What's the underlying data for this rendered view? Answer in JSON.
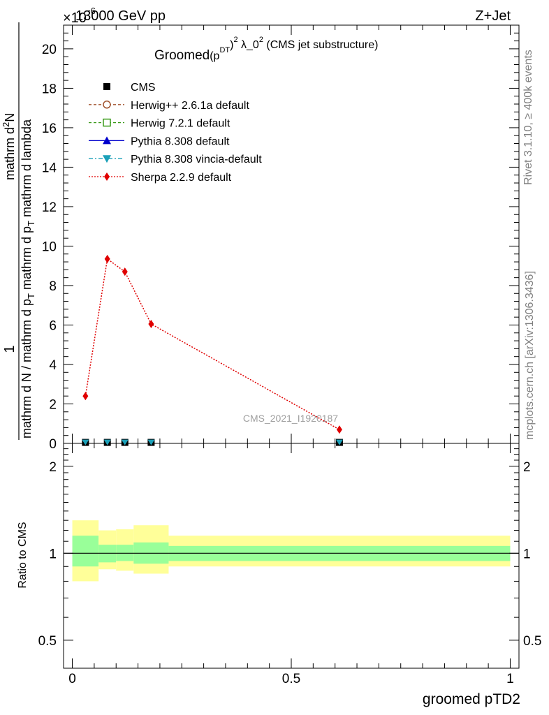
{
  "header": {
    "energy_label": "13000 GeV pp",
    "process_label": "Z+Jet",
    "exponent_label": "×10",
    "exponent_power": "−6"
  },
  "side_labels": {
    "rivet": "Rivet 3.1.10, ≥ 400k events",
    "mcplots": "mcplots.cern.ch [arXiv:1306.3436]"
  },
  "watermark": "CMS_2021_I1920187",
  "title": {
    "prefix": "Groomed",
    "p": "(p",
    "sup_D": "D",
    "sub_T": "T",
    "sup_2": "2",
    "rest": " λ_0",
    "sup_2b": "2",
    "suffix": " (CMS jet substructure)"
  },
  "y_title": {
    "line1": "1",
    "line2_a": "mathrm d N / mathrm d p",
    "line2_sub": "T",
    "line2_b": " mathrm d p",
    "line2_sub2": "T",
    "line2_c": " mathrm d lambda",
    "num": "mathrm d",
    "num_sup": "2",
    "num_b": "N"
  },
  "ratio_ylabel": "Ratio to CMS",
  "xlabel": "groomed pTD2",
  "legend": [
    {
      "label": "CMS",
      "color": "#000000",
      "marker": "square",
      "line": "none"
    },
    {
      "label": "Herwig++ 2.6.1a default",
      "color": "#a0522d",
      "marker": "circle-open",
      "line": "dashed"
    },
    {
      "label": "Herwig 7.2.1 default",
      "color": "#3a9a1a",
      "marker": "square-open",
      "line": "dashed"
    },
    {
      "label": "Pythia 8.308 default",
      "color": "#0000cc",
      "marker": "triangle",
      "line": "solid"
    },
    {
      "label": "Pythia 8.308 vincia-default",
      "color": "#1ba0b8",
      "marker": "triangle-down",
      "line": "dashdot"
    },
    {
      "label": "Sherpa 2.2.9 default",
      "color": "#e00000",
      "marker": "diamond",
      "line": "dotted"
    }
  ],
  "chart_data": {
    "type": "line",
    "title": "Groomed (p_T^D)^2 λ_0^2 (CMS jet substructure)",
    "xlabel": "groomed pTD2",
    "ylabel": "1 / mathrm d N / mathrm d p_T mathrm d p_T mathrm d lambda · mathrm d^2N",
    "xlim": [
      -0.02,
      1.02
    ],
    "ylim": [
      0,
      21.2
    ],
    "y_scale_exponent": -6,
    "x_ticks": [
      0,
      0.5,
      1
    ],
    "x_tick_labels": [
      "0",
      "0.5",
      "1"
    ],
    "y_ticks": [
      0,
      2,
      4,
      6,
      8,
      10,
      12,
      14,
      16,
      18,
      20
    ],
    "y_tick_labels": [
      "0",
      "2",
      "4",
      "6",
      "8",
      "10",
      "12",
      "14",
      "16",
      "18",
      "20"
    ],
    "bin_edges": [
      0,
      0.06,
      0.1,
      0.14,
      0.22,
      1.0
    ],
    "series": [
      {
        "name": "CMS",
        "x": [
          0.03,
          0.08,
          0.12,
          0.18,
          0.61
        ],
        "values": [
          0.05,
          0.05,
          0.05,
          0.05,
          0.05
        ]
      },
      {
        "name": "Herwig++ 2.6.1a default",
        "x": [
          0.03,
          0.08,
          0.12,
          0.18,
          0.61
        ],
        "values": [
          0.05,
          0.05,
          0.05,
          0.05,
          0.05
        ]
      },
      {
        "name": "Herwig 7.2.1 default",
        "x": [
          0.03,
          0.08,
          0.12,
          0.18,
          0.61
        ],
        "values": [
          0.05,
          0.05,
          0.05,
          0.05,
          0.05
        ]
      },
      {
        "name": "Pythia 8.308 default",
        "x": [
          0.03,
          0.08,
          0.12,
          0.18,
          0.61
        ],
        "values": [
          0.05,
          0.05,
          0.05,
          0.05,
          0.05
        ]
      },
      {
        "name": "Pythia 8.308 vincia-default",
        "x": [
          0.03,
          0.08,
          0.12,
          0.18,
          0.61
        ],
        "values": [
          0.05,
          0.05,
          0.05,
          0.05,
          0.05
        ]
      },
      {
        "name": "Sherpa 2.2.9 default",
        "x": [
          0.03,
          0.08,
          0.12,
          0.18,
          0.61
        ],
        "values": [
          2.4,
          9.35,
          8.7,
          6.05,
          0.7
        ]
      }
    ],
    "ratio": {
      "ylabel": "Ratio to CMS",
      "ylim": [
        0.4,
        2.4
      ],
      "y_ticks": [
        0.5,
        1,
        2
      ],
      "y_tick_labels": [
        "0.5",
        "1",
        "2"
      ],
      "stat_band": [
        [
          0.9,
          1.15
        ],
        [
          0.93,
          1.07
        ],
        [
          0.94,
          1.07
        ],
        [
          0.92,
          1.09
        ],
        [
          0.94,
          1.06
        ]
      ],
      "total_band": [
        [
          0.8,
          1.3
        ],
        [
          0.88,
          1.2
        ],
        [
          0.87,
          1.21
        ],
        [
          0.85,
          1.25
        ],
        [
          0.9,
          1.15
        ]
      ]
    }
  }
}
